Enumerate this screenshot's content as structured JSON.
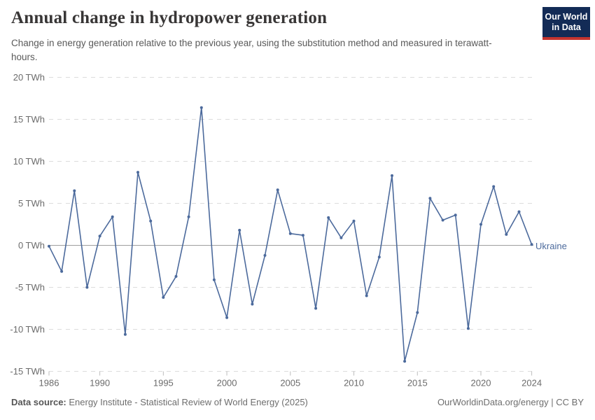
{
  "header": {
    "title": "Annual change in hydropower generation",
    "subtitle": "Change in energy generation relative to the previous year, using the substitution method and measured in terawatt-hours.",
    "logo": {
      "line1": "Our World",
      "line2": "in Data"
    }
  },
  "chart_data": {
    "type": "line",
    "title": "Annual change in hydropower generation",
    "xlabel": "",
    "ylabel": "",
    "unit": "TWh",
    "ylim": [
      -15,
      20
    ],
    "grid": "horizontal-dashed",
    "legend_position": "end-of-line-label",
    "x": [
      1986,
      1987,
      1988,
      1989,
      1990,
      1991,
      1992,
      1993,
      1994,
      1995,
      1996,
      1997,
      1998,
      1999,
      2000,
      2001,
      2002,
      2003,
      2004,
      2005,
      2006,
      2007,
      2008,
      2009,
      2010,
      2011,
      2012,
      2013,
      2014,
      2015,
      2016,
      2017,
      2018,
      2019,
      2020,
      2021,
      2022,
      2023,
      2024
    ],
    "series": [
      {
        "name": "Ukraine",
        "values": [
          -0.1,
          -3.1,
          6.5,
          -5.0,
          1.1,
          3.4,
          -10.6,
          8.7,
          2.9,
          -6.2,
          -3.7,
          3.4,
          16.4,
          -4.1,
          -8.6,
          1.8,
          -7.0,
          -1.2,
          6.6,
          1.4,
          1.2,
          -7.5,
          3.3,
          0.9,
          2.9,
          -6.0,
          -1.4,
          8.3,
          -13.8,
          -8.0,
          5.6,
          3.0,
          3.6,
          -9.9,
          2.5,
          7.0,
          1.3,
          4.0,
          0.1
        ]
      }
    ],
    "yticks": [
      {
        "value": 20,
        "label": "20 TWh"
      },
      {
        "value": 15,
        "label": "15 TWh"
      },
      {
        "value": 10,
        "label": "10 TWh"
      },
      {
        "value": 5,
        "label": "5 TWh"
      },
      {
        "value": 0,
        "label": "0 TWh"
      },
      {
        "value": -5,
        "label": "-5 TWh"
      },
      {
        "value": -10,
        "label": "-10 TWh"
      },
      {
        "value": -15,
        "label": "-15 TWh"
      }
    ],
    "xticks": [
      {
        "value": 1986,
        "label": "1986"
      },
      {
        "value": 1990,
        "label": "1990"
      },
      {
        "value": 1995,
        "label": "1995"
      },
      {
        "value": 2000,
        "label": "2000"
      },
      {
        "value": 2005,
        "label": "2005"
      },
      {
        "value": 2010,
        "label": "2010"
      },
      {
        "value": 2015,
        "label": "2015"
      },
      {
        "value": 2020,
        "label": "2020"
      },
      {
        "value": 2024,
        "label": "2024"
      }
    ]
  },
  "colors": {
    "series": "#4C6A9C",
    "grid": "#dcdcdc",
    "zero_line": "#9e9e9e",
    "tick_mark": "#bdbdbd",
    "axis_text": "#6b6b6b",
    "logo_bg": "#132B56",
    "logo_accent": "#C5342F"
  },
  "footer": {
    "datasource_label": "Data source:",
    "datasource_value": " Energy Institute - Statistical Review of World Energy (2025)",
    "right": "OurWorldinData.org/energy | CC BY"
  }
}
